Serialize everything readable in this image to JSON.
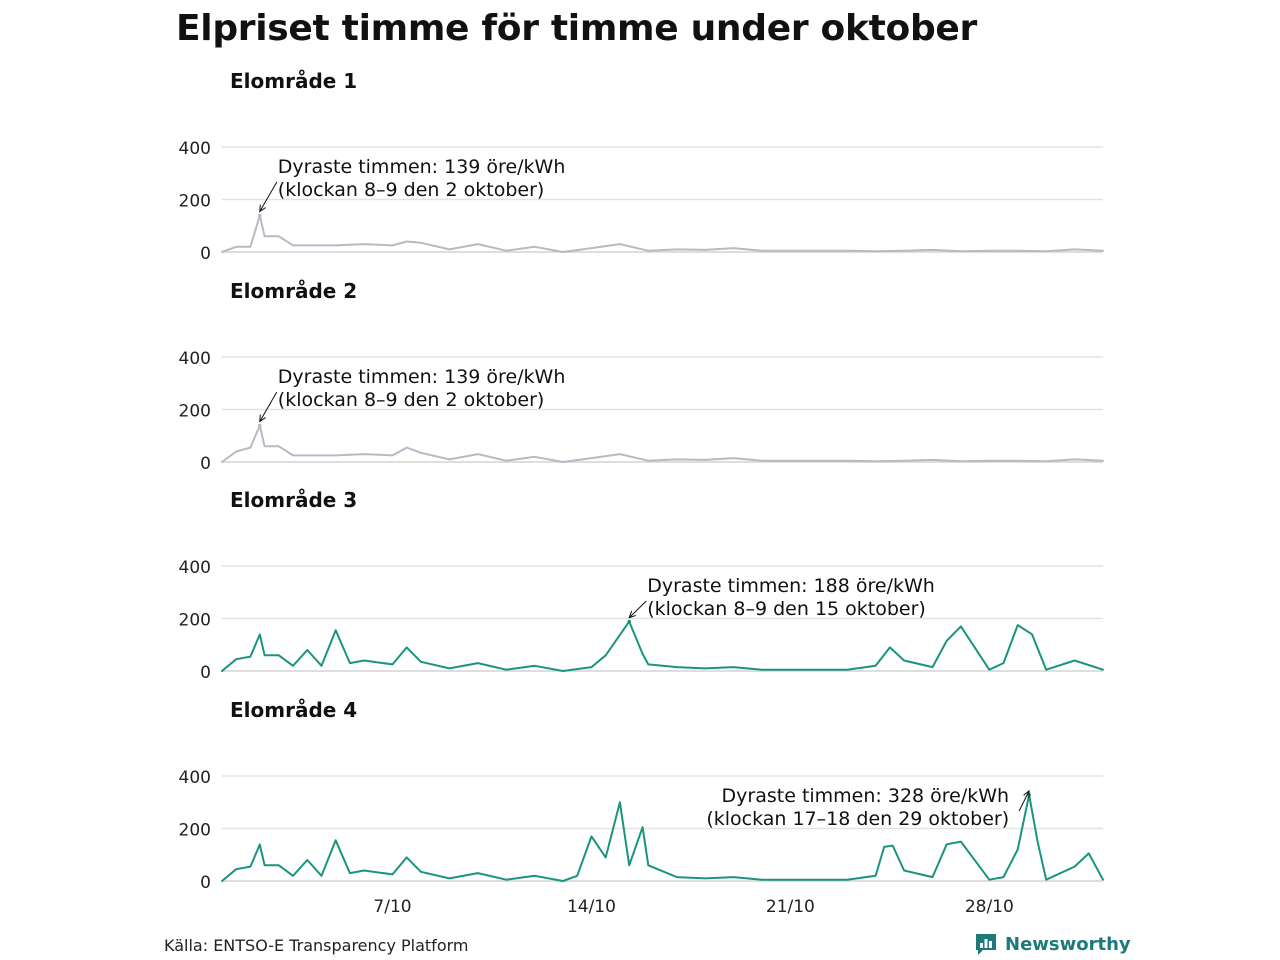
{
  "title": "Elpriset timme för timme under oktober",
  "source": "Källa: ENTSO-E Transparency Platform",
  "brand": "Newsworthy",
  "colors": {
    "grey": "#b9b9c6",
    "teal": "#1a9480",
    "grid": "#e3e3e3",
    "brand": "#1c7b78"
  },
  "chart_data": [
    {
      "type": "line",
      "title": "Elområde 1",
      "color": "grey",
      "ylim": [
        0,
        400
      ],
      "yticks": [
        0,
        200,
        400
      ],
      "x": [
        1,
        1.5,
        2,
        2.33,
        2.5,
        3,
        3.5,
        4,
        5,
        6,
        7,
        7.5,
        8,
        9,
        10,
        11,
        12,
        13,
        14,
        15,
        16,
        17,
        18,
        19,
        20,
        21,
        22,
        23,
        24,
        25,
        26,
        27,
        28,
        29,
        30,
        31,
        32
      ],
      "values": [
        0,
        20,
        20,
        139,
        60,
        60,
        25,
        25,
        25,
        30,
        25,
        40,
        35,
        10,
        30,
        5,
        20,
        0,
        15,
        30,
        5,
        10,
        8,
        15,
        5,
        5,
        5,
        5,
        3,
        5,
        8,
        3,
        5,
        5,
        3,
        10,
        5
      ],
      "annotation": {
        "line1": "Dyraste timmen: 139 öre/kWh",
        "line2": "(klockan 8–9 den 2 oktober)"
      }
    },
    {
      "type": "line",
      "title": "Elområde 2",
      "color": "grey",
      "ylim": [
        0,
        400
      ],
      "yticks": [
        0,
        200,
        400
      ],
      "x": [
        1,
        1.5,
        2,
        2.33,
        2.5,
        3,
        3.5,
        4,
        5,
        6,
        7,
        7.5,
        8,
        9,
        10,
        11,
        12,
        13,
        14,
        15,
        16,
        17,
        18,
        19,
        20,
        21,
        22,
        23,
        24,
        25,
        26,
        27,
        28,
        29,
        30,
        31,
        32
      ],
      "values": [
        0,
        40,
        55,
        139,
        60,
        60,
        25,
        25,
        25,
        30,
        25,
        55,
        35,
        10,
        30,
        5,
        20,
        0,
        15,
        30,
        5,
        10,
        8,
        15,
        5,
        5,
        5,
        5,
        3,
        5,
        8,
        3,
        5,
        5,
        3,
        10,
        5
      ],
      "annotation": {
        "line1": "Dyraste timmen: 139 öre/kWh",
        "line2": "(klockan 8–9 den 2 oktober)"
      }
    },
    {
      "type": "line",
      "title": "Elområde 3",
      "color": "teal",
      "ylim": [
        0,
        400
      ],
      "yticks": [
        0,
        200,
        400
      ],
      "x": [
        1,
        1.5,
        2,
        2.33,
        2.5,
        3,
        3.5,
        4,
        4.5,
        5,
        5.5,
        6,
        7,
        7.5,
        8,
        9,
        10,
        11,
        12,
        13,
        14,
        14.5,
        15.33,
        15.8,
        16,
        17,
        18,
        19,
        20,
        21,
        22,
        23,
        24,
        24.5,
        25,
        26,
        26.5,
        27,
        28,
        28.5,
        29,
        29.5,
        30,
        31,
        32
      ],
      "values": [
        0,
        45,
        55,
        139,
        60,
        60,
        20,
        80,
        20,
        155,
        30,
        40,
        25,
        90,
        35,
        10,
        30,
        5,
        20,
        0,
        15,
        60,
        188,
        65,
        25,
        15,
        10,
        15,
        5,
        5,
        5,
        5,
        20,
        90,
        40,
        15,
        115,
        170,
        5,
        30,
        175,
        140,
        5,
        40,
        5
      ],
      "annotation": {
        "line1": "Dyraste timmen: 188 öre/kWh",
        "line2": "(klockan 8–9 den 15 oktober)"
      }
    },
    {
      "type": "line",
      "title": "Elområde 4",
      "color": "teal",
      "ylim": [
        0,
        400
      ],
      "yticks": [
        0,
        200,
        400
      ],
      "x": [
        1,
        1.5,
        2,
        2.33,
        2.5,
        3,
        3.5,
        4,
        4.5,
        5,
        5.5,
        6,
        7,
        7.5,
        8,
        9,
        10,
        11,
        12,
        13,
        13.5,
        14,
        14.5,
        15,
        15.33,
        15.8,
        16,
        17,
        18,
        19,
        20,
        21,
        22,
        23,
        24,
        24.3,
        24.6,
        25,
        26,
        26.5,
        27,
        28,
        28.5,
        29,
        29.4,
        29.7,
        30,
        31,
        31.5,
        32
      ],
      "values": [
        0,
        45,
        55,
        139,
        60,
        60,
        20,
        80,
        20,
        155,
        30,
        40,
        25,
        90,
        35,
        10,
        30,
        5,
        20,
        0,
        20,
        170,
        90,
        300,
        60,
        205,
        60,
        15,
        10,
        15,
        5,
        5,
        5,
        5,
        20,
        130,
        135,
        40,
        15,
        140,
        150,
        5,
        15,
        120,
        328,
        150,
        5,
        55,
        105,
        5
      ],
      "annotation": {
        "line1": "Dyraste timmen: 328 öre/kWh",
        "line2": "(klockan 17–18 den 29 oktober)"
      }
    }
  ],
  "xaxis": {
    "ticks": [
      {
        "x": 7,
        "label": "7/10"
      },
      {
        "x": 14,
        "label": "14/10"
      },
      {
        "x": 21,
        "label": "21/10"
      },
      {
        "x": 28,
        "label": "28/10"
      }
    ]
  }
}
